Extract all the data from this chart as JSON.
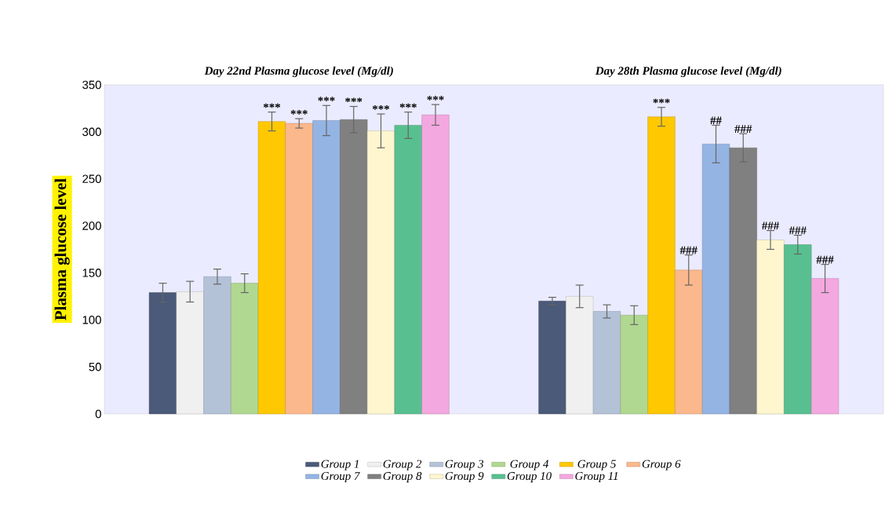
{
  "chart_data": {
    "type": "bar",
    "categories": [
      "*Day 22nd Plasma glucose level (Mg/dl)*",
      "*Day 28th Plasma glucose level (Mg/dl)*"
    ],
    "ylabel": "Plasma glucose level",
    "ylim": [
      0,
      350
    ],
    "yticks": [
      0,
      50,
      100,
      150,
      200,
      250,
      300,
      350
    ],
    "legend": "bottom",
    "series": [
      {
        "name": "Group 1",
        "color": "#4a5a78",
        "values": [
          129,
          120
        ],
        "errors": [
          10,
          4
        ],
        "value_labels": [
          null,
          null
        ]
      },
      {
        "name": "Group 2",
        "color": "#f0f0f0",
        "values": [
          130,
          125
        ],
        "errors": [
          11,
          12
        ],
        "value_labels": [
          null,
          null
        ]
      },
      {
        "name": "Group 3",
        "color": "#b4c2d8",
        "values": [
          146,
          109
        ],
        "errors": [
          8,
          7
        ],
        "value_labels": [
          null,
          null
        ]
      },
      {
        "name": "Group 4",
        "color": "#b0d890",
        "values": [
          139,
          105
        ],
        "errors": [
          10,
          10
        ],
        "value_labels": [
          null,
          null
        ]
      },
      {
        "name": "Group 5",
        "color": "#ffc800",
        "values": [
          311,
          316
        ],
        "errors": [
          10,
          10
        ],
        "value_labels": [
          "***",
          "***"
        ]
      },
      {
        "name": "Group 6",
        "color": "#fbb88c",
        "values": [
          309,
          153
        ],
        "errors": [
          5,
          16
        ],
        "value_labels": [
          "***",
          "###"
        ]
      },
      {
        "name": "Group 7",
        "color": "#94b4e4",
        "values": [
          312,
          287
        ],
        "errors": [
          16,
          20
        ],
        "value_labels": [
          "***",
          "##"
        ]
      },
      {
        "name": "Group 8",
        "color": "#808080",
        "values": [
          313,
          283
        ],
        "errors": [
          14,
          15
        ],
        "value_labels": [
          "***",
          "###"
        ]
      },
      {
        "name": "Group 9",
        "color": "#fff6d0",
        "values": [
          301,
          185
        ],
        "errors": [
          18,
          10
        ],
        "value_labels": [
          "***",
          "###"
        ]
      },
      {
        "name": "Group 10",
        "color": "#58c090",
        "values": [
          307,
          180
        ],
        "errors": [
          14,
          10
        ],
        "value_labels": [
          "***",
          "###"
        ]
      },
      {
        "name": "Group 11",
        "color": "#f4a8e0",
        "values": [
          318,
          144
        ],
        "errors": [
          11,
          15
        ],
        "value_labels": [
          "***",
          "###"
        ]
      }
    ]
  }
}
